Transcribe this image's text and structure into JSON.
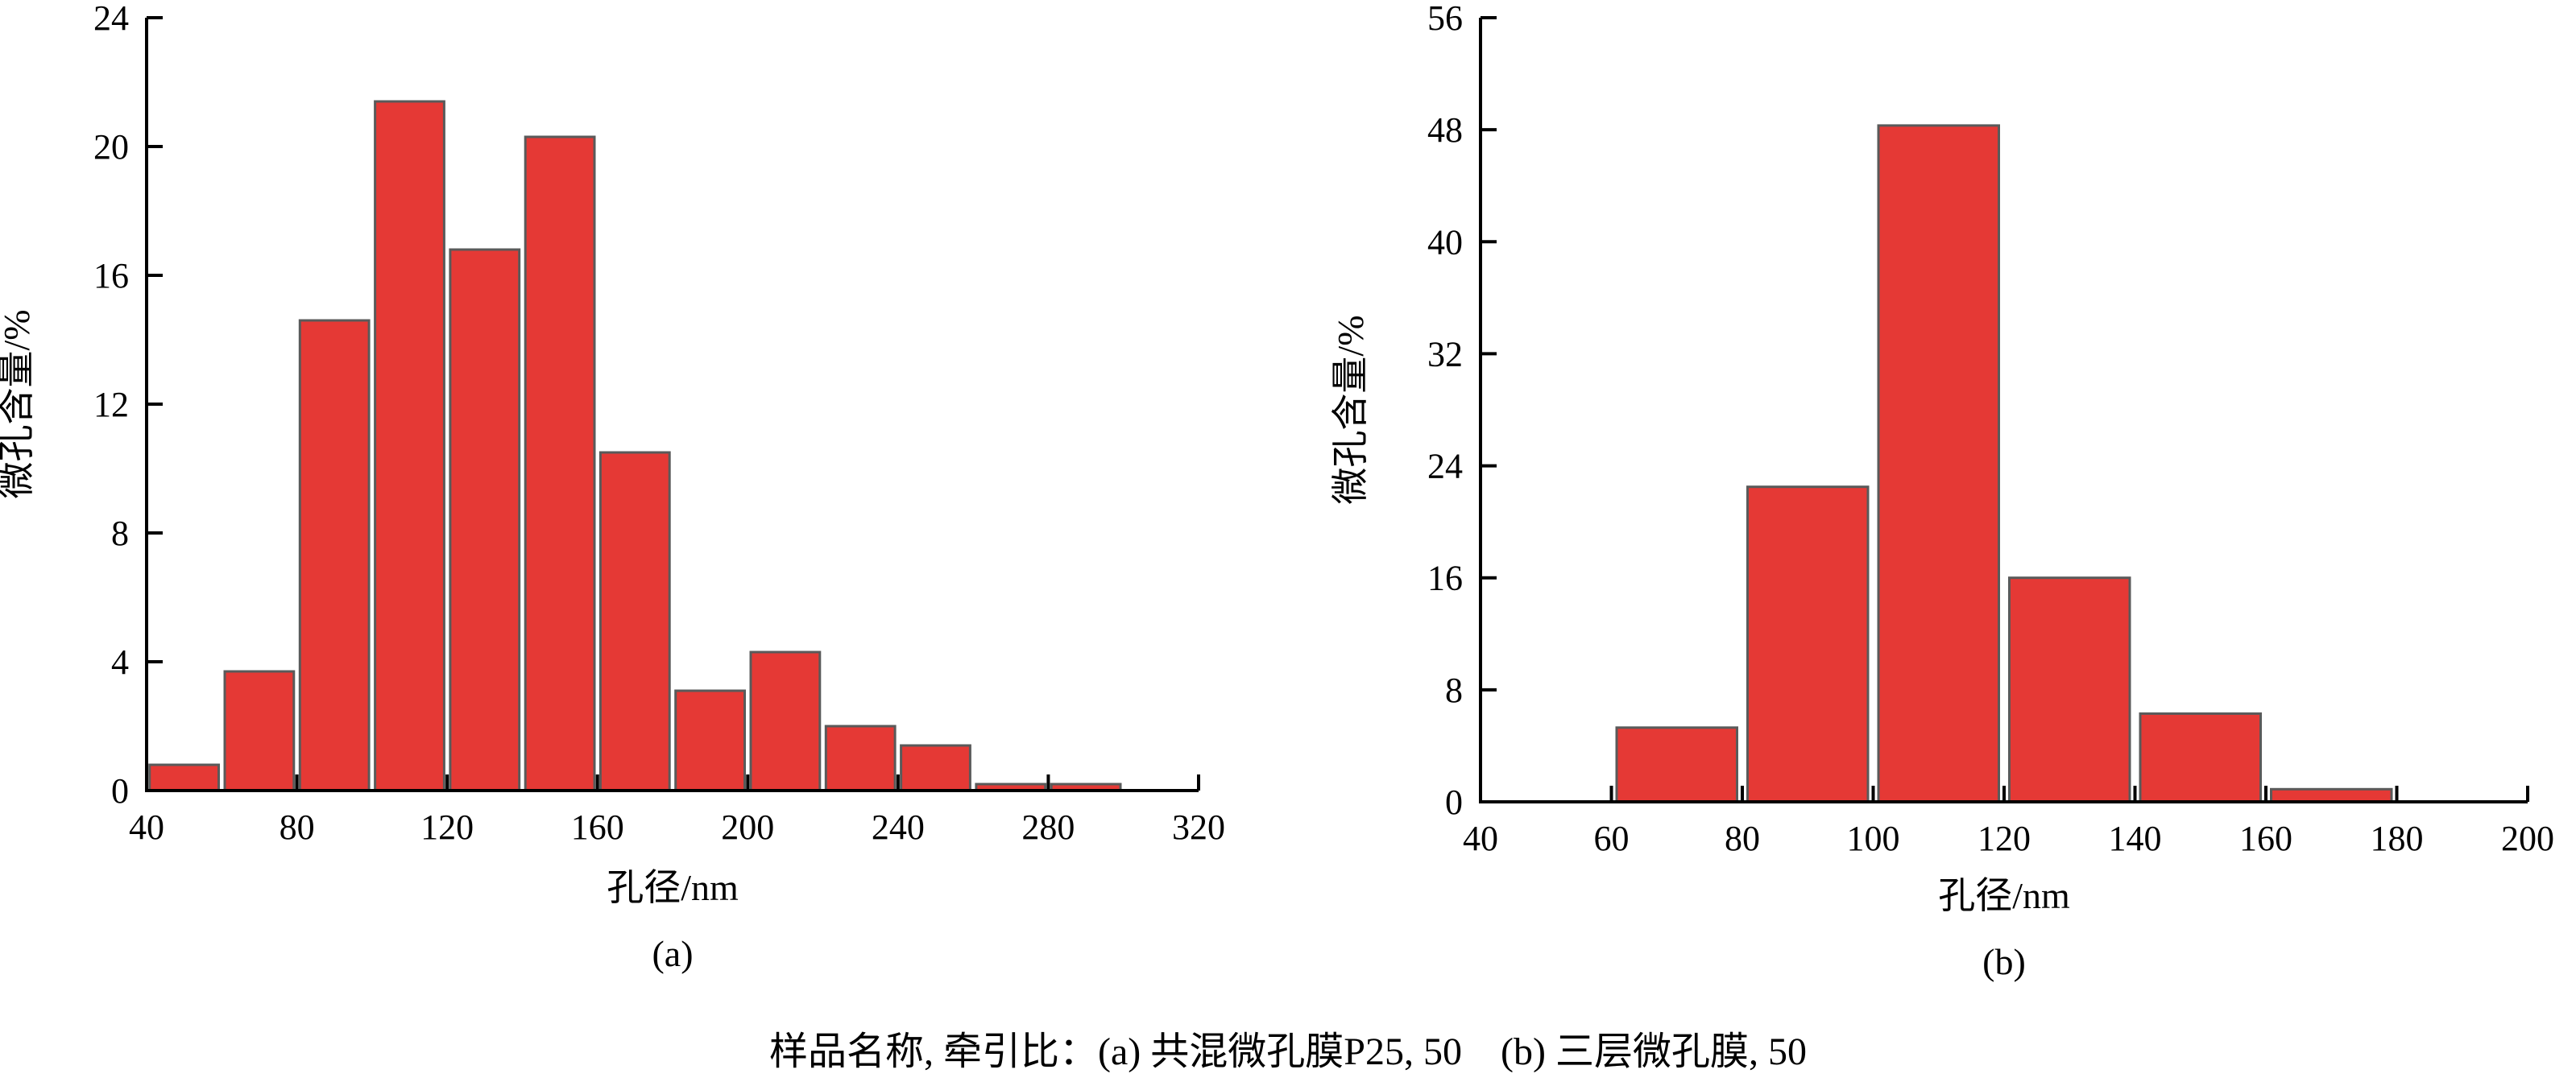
{
  "chart_data": [
    {
      "panel": "(a)",
      "type": "bar",
      "xlabel": "孔径/nm",
      "ylabel": "微孔含量/%",
      "xlim": [
        40,
        320
      ],
      "ylim": [
        0,
        24
      ],
      "xticks": [
        40,
        80,
        120,
        160,
        200,
        240,
        280,
        320
      ],
      "yticks": [
        0,
        4,
        8,
        12,
        16,
        20,
        24
      ],
      "bin_width": 20,
      "bar_color": "#e53935",
      "bins": [
        {
          "from": 40,
          "to": 60,
          "value": 0.8
        },
        {
          "from": 60,
          "to": 80,
          "value": 3.7
        },
        {
          "from": 80,
          "to": 100,
          "value": 14.6
        },
        {
          "from": 100,
          "to": 120,
          "value": 21.4
        },
        {
          "from": 120,
          "to": 140,
          "value": 16.8
        },
        {
          "from": 140,
          "to": 160,
          "value": 20.3
        },
        {
          "from": 160,
          "to": 180,
          "value": 10.5
        },
        {
          "from": 180,
          "to": 200,
          "value": 3.1
        },
        {
          "from": 200,
          "to": 220,
          "value": 4.3
        },
        {
          "from": 220,
          "to": 240,
          "value": 2.0
        },
        {
          "from": 240,
          "to": 260,
          "value": 1.4
        },
        {
          "from": 260,
          "to": 280,
          "value": 0.2
        },
        {
          "from": 280,
          "to": 300,
          "value": 0.2
        }
      ]
    },
    {
      "panel": "(b)",
      "type": "bar",
      "xlabel": "孔径/nm",
      "ylabel": "微孔含量/%",
      "xlim": [
        40,
        200
      ],
      "ylim": [
        0,
        56
      ],
      "xticks": [
        40,
        60,
        80,
        100,
        120,
        140,
        160,
        180,
        200
      ],
      "yticks": [
        0,
        8,
        16,
        24,
        32,
        40,
        48,
        56
      ],
      "bin_width": 20,
      "bar_color": "#e53935",
      "bins": [
        {
          "from": 60,
          "to": 80,
          "value": 5.3
        },
        {
          "from": 80,
          "to": 100,
          "value": 22.5
        },
        {
          "from": 100,
          "to": 120,
          "value": 48.3
        },
        {
          "from": 120,
          "to": 140,
          "value": 16.0
        },
        {
          "from": 140,
          "to": 160,
          "value": 6.3
        },
        {
          "from": 160,
          "to": 180,
          "value": 0.9
        }
      ]
    }
  ],
  "caption": "样品名称, 牵引比：(a) 共混微孔膜P25, 50　(b) 三层微孔膜, 50"
}
